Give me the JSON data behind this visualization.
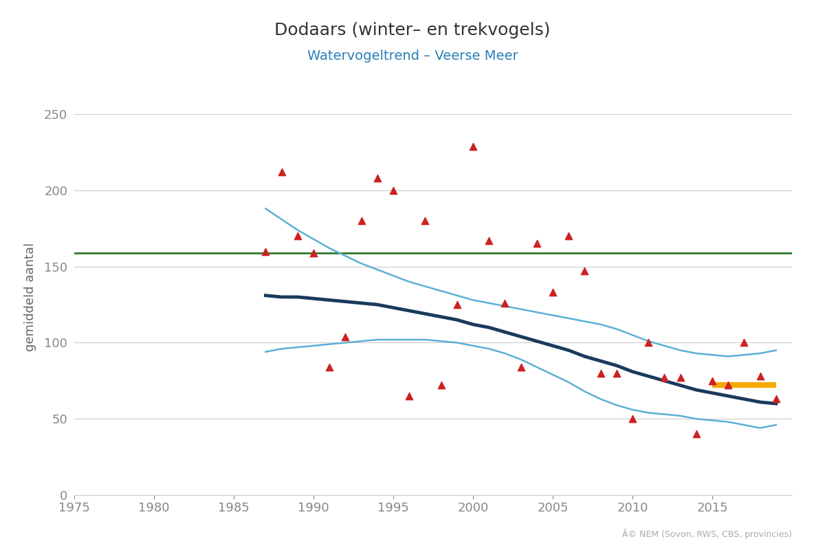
{
  "title": "Dodaars (winter– en trekvogels)",
  "subtitle": "Watervogeltrend – Veerse Meer",
  "xlabel": "",
  "ylabel": "gemiddeld aantal",
  "ylim": [
    0,
    260
  ],
  "xlim": [
    1975,
    2020
  ],
  "yticks": [
    0,
    50,
    100,
    150,
    200,
    250
  ],
  "xticks": [
    1975,
    1980,
    1985,
    1990,
    1995,
    2000,
    2005,
    2010,
    2015
  ],
  "background_color": "#ffffff",
  "grid_color": "#cccccc",
  "title_color": "#333333",
  "subtitle_color": "#2a7fb5",
  "ylabel_color": "#666666",
  "copyright_text": "Ã© NEM (Sovon, RWS, CBS, provincies)",
  "scatter_x": [
    1987,
    1988,
    1989,
    1990,
    1991,
    1992,
    1993,
    1994,
    1995,
    1996,
    1997,
    1998,
    1999,
    2000,
    2001,
    2002,
    2003,
    2004,
    2005,
    2006,
    2007,
    2008,
    2009,
    2010,
    2011,
    2012,
    2013,
    2014,
    2015,
    2016,
    2017,
    2018,
    2019
  ],
  "scatter_y": [
    160,
    212,
    170,
    159,
    84,
    104,
    180,
    208,
    200,
    65,
    180,
    72,
    125,
    229,
    167,
    126,
    84,
    165,
    133,
    170,
    147,
    80,
    80,
    50,
    100,
    77,
    77,
    40,
    75,
    72,
    100,
    78,
    63
  ],
  "scatter_color": "#cc2222",
  "trend_x": [
    1987,
    1988,
    1989,
    1990,
    1991,
    1992,
    1993,
    1994,
    1995,
    1996,
    1997,
    1998,
    1999,
    2000,
    2001,
    2002,
    2003,
    2004,
    2005,
    2006,
    2007,
    2008,
    2009,
    2010,
    2011,
    2012,
    2013,
    2014,
    2015,
    2016,
    2017,
    2018,
    2019
  ],
  "trend_y": [
    131,
    130,
    130,
    129,
    128,
    127,
    126,
    125,
    123,
    121,
    119,
    117,
    115,
    112,
    110,
    107,
    104,
    101,
    98,
    95,
    91,
    88,
    85,
    81,
    78,
    75,
    72,
    69,
    67,
    65,
    63,
    61,
    60
  ],
  "trend_color": "#1a3a5c",
  "trend_linewidth": 3.5,
  "ci_upper_y": [
    188,
    181,
    174,
    168,
    162,
    157,
    152,
    148,
    144,
    140,
    137,
    134,
    131,
    128,
    126,
    124,
    122,
    120,
    118,
    116,
    114,
    112,
    109,
    105,
    101,
    98,
    95,
    93,
    92,
    91,
    92,
    93,
    95
  ],
  "ci_lower_y": [
    94,
    96,
    97,
    98,
    99,
    100,
    101,
    102,
    102,
    102,
    102,
    101,
    100,
    98,
    96,
    93,
    89,
    84,
    79,
    74,
    68,
    63,
    59,
    56,
    54,
    53,
    52,
    50,
    49,
    48,
    46,
    44,
    46
  ],
  "ci_color": "#5bafd6",
  "ci_linewidth": 1.8,
  "ref_line_y": 159,
  "ref_line_color": "#2d7a2d",
  "ref_line_linewidth": 2.0,
  "orange_x": [
    2015.0,
    2019.0
  ],
  "orange_y": [
    72,
    72
  ],
  "orange_color": "#f5a800",
  "orange_linewidth": 6
}
